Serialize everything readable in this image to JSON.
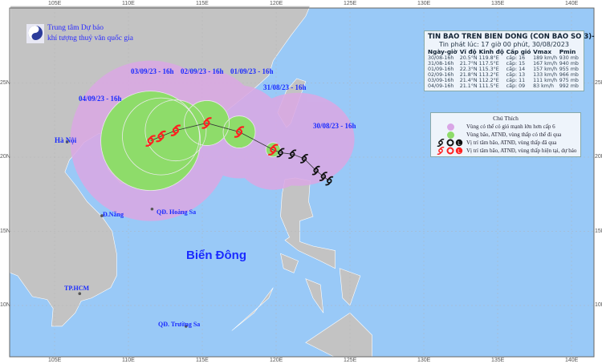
{
  "agency": {
    "line1": "Trung tâm Dự báo",
    "line2": "khí tượng thuỷ văn quốc gia"
  },
  "axes": {
    "lon_ticks": [
      "105E",
      "110E",
      "115E",
      "120E",
      "125E",
      "130E",
      "135E",
      "140E"
    ],
    "lat_ticks": [
      "25N",
      "20N",
      "15N",
      "10N"
    ]
  },
  "bulletin": {
    "title": "TIN BAO TREN BIEN DONG (CON BAO SO 3)-",
    "issued": "Tin phát lúc: 17 giờ 00 phút, 30/08/2023",
    "headers": [
      "Ngày-giờ",
      "Vĩ độ",
      "Kinh độ",
      "Cấp gió",
      "Vmax",
      "Pmin"
    ],
    "rows": [
      [
        "30/08-16h",
        "20.5°N",
        "119.8°E",
        "cấp: 16",
        "189 km/h",
        "930 mb"
      ],
      [
        "31/08-16h",
        "21.7°N",
        "117.5°E",
        "cấp: 15",
        "167 km/h",
        "940 mb"
      ],
      [
        "01/09-16h",
        "22.3°N",
        "115.3°E",
        "cấp: 14",
        "157 km/h",
        "955 mb"
      ],
      [
        "02/09-16h",
        "21.8°N",
        "113.2°E",
        "cấp: 13",
        "133 km/h",
        "966 mb"
      ],
      [
        "03/09-16h",
        "21.4°N",
        "112.2°E",
        "cấp: 11",
        "111 km/h",
        "975 mb"
      ],
      [
        "04/09-16h",
        "21.1°N",
        "111.5°E",
        "cấp: 09",
        "83 km/h",
        "992 mb"
      ]
    ]
  },
  "legend": {
    "title": "Chú Thích",
    "items": [
      {
        "label": "Vùng có thể có gió mạnh lớn hơn cấp 6",
        "color": "#d9a6e6"
      },
      {
        "label": "Vùng bão, ATNĐ, vùng thấp có thể đi qua",
        "color": "#8edc6a"
      },
      {
        "label": "Vị trí tâm bão, ATNĐ, vùng thấp đã qua",
        "color": "#111111"
      },
      {
        "label": "Vị trí tâm bão, ATNĐ, vùng thấp hiện tại, dự báo",
        "color": "#ff2020"
      }
    ]
  },
  "track": {
    "forecast": [
      {
        "label": "30/08/23 - 16h",
        "lon": 119.8,
        "lat": 20.5
      },
      {
        "label": "31/08/23 - 16h",
        "lon": 117.5,
        "lat": 21.7
      },
      {
        "label": "01/09/23 - 16h",
        "lon": 115.3,
        "lat": 22.3
      },
      {
        "label": "02/09/23 - 16h",
        "lon": 113.2,
        "lat": 21.8
      },
      {
        "label": "03/09/23 - 16h",
        "lon": 112.2,
        "lat": 21.4
      },
      {
        "label": "04/09/23 - 16h",
        "lon": 111.5,
        "lat": 21.1
      }
    ],
    "past": [
      {
        "lon": 120.3,
        "lat": 20.3
      },
      {
        "lon": 121.1,
        "lat": 20.2
      },
      {
        "lon": 121.9,
        "lat": 19.9
      },
      {
        "lon": 122.7,
        "lat": 19.1
      },
      {
        "lon": 123.2,
        "lat": 18.7
      },
      {
        "lon": 123.6,
        "lat": 18.4
      }
    ]
  },
  "places": {
    "hanoi": "Hà Nội",
    "danang": "Đ.Nẵng",
    "hoangsa": "QĐ. Hoàng Sa",
    "biendong": "Biển Đông",
    "hcm": "TP.HCM",
    "truongsa": "QĐ. Trường Sa"
  },
  "colors": {
    "ocean": "#99c9f7",
    "land": "#c3c3c3",
    "forecast_icon": "#ff2020",
    "past_icon": "#111111",
    "label": "#1a2bff"
  }
}
